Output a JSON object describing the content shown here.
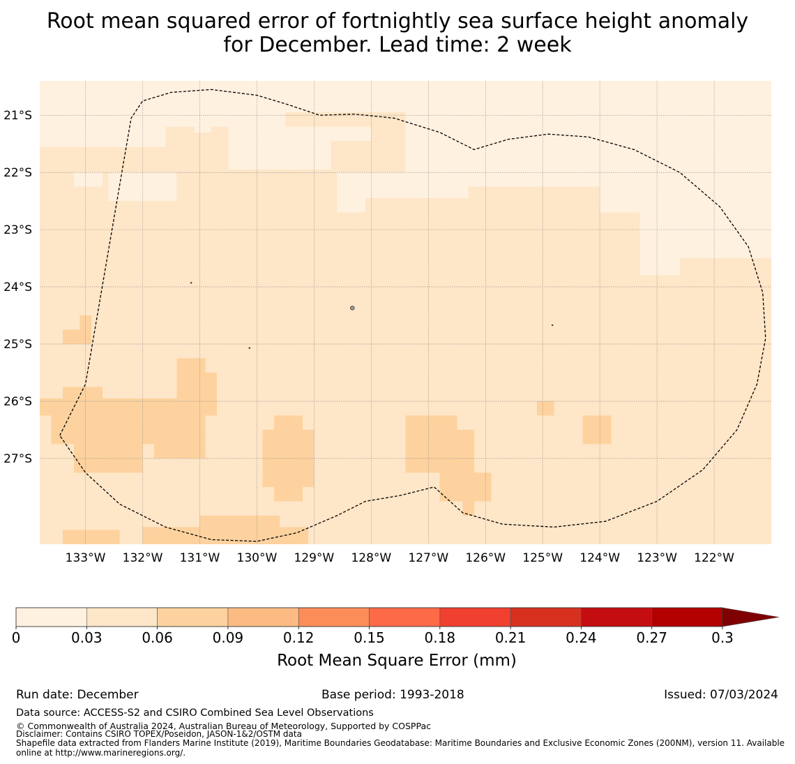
{
  "chart_data": {
    "type": "heatmap",
    "title_line1": "Root mean squared error of fortnightly sea surface height anomaly",
    "title_line2": "for December. Lead time: 2 week",
    "xlabel": "",
    "ylabel": "",
    "lon_range": [
      -133.8,
      -121.0
    ],
    "lat_range": [
      -20.4,
      -28.5
    ],
    "x_ticks": [
      -133,
      -132,
      -131,
      -130,
      -129,
      -128,
      -127,
      -126,
      -125,
      -124,
      -123,
      -122
    ],
    "x_tick_labels": [
      "133°W",
      "132°W",
      "131°W",
      "130°W",
      "129°W",
      "128°W",
      "127°W",
      "126°W",
      "125°W",
      "124°W",
      "123°W",
      "122°W"
    ],
    "y_ticks": [
      -21,
      -22,
      -23,
      -24,
      -25,
      -26,
      -27
    ],
    "y_tick_labels": [
      "21°S",
      "22°S",
      "23°S",
      "24°S",
      "25°S",
      "26°S",
      "27°S"
    ],
    "grid": true,
    "bin_edges": [
      0,
      0.03,
      0.06,
      0.09,
      0.12,
      0.15,
      0.18,
      0.21,
      0.24,
      0.27,
      0.3
    ],
    "bin_colors": [
      "#fff1e0",
      "#fee6c8",
      "#fdd29e",
      "#fdbb84",
      "#fc8d59",
      "#fc6a48",
      "#ef4030",
      "#d7301f",
      "#c40d10",
      "#b30000"
    ],
    "extend_color": "#7f0000",
    "colorbar_label": "Root Mean Square Error (mm)",
    "colorbar_tick_labels": [
      "0",
      "0.03",
      "0.06",
      "0.09",
      "0.12",
      "0.15",
      "0.18",
      "0.21",
      "0.24",
      "0.27",
      "0.3"
    ],
    "background_bin": 1,
    "regions": [
      {
        "bin": 0,
        "cells": [
          [
            -133.8,
            -20.4,
            -121.0,
            -20.95
          ],
          [
            -133.8,
            -20.95,
            -131.6,
            -21.55
          ],
          [
            -131.6,
            -20.95,
            -129.5,
            -21.2
          ],
          [
            -130.5,
            -21.2,
            -128.7,
            -21.95
          ],
          [
            -128.7,
            -21.2,
            -128.0,
            -21.45
          ],
          [
            -127.4,
            -20.95,
            -121.0,
            -22.25
          ],
          [
            -128.1,
            -22.0,
            -126.3,
            -22.45
          ],
          [
            -128.6,
            -22.0,
            -128.1,
            -22.7
          ],
          [
            -124.0,
            -21.95,
            -121.0,
            -22.7
          ],
          [
            -122.6,
            -22.5,
            -121.0,
            -23.5
          ],
          [
            -123.3,
            -22.7,
            -122.6,
            -23.8
          ],
          [
            -133.2,
            -22.0,
            -132.7,
            -22.25
          ],
          [
            -132.6,
            -22.0,
            -131.4,
            -22.5
          ],
          [
            -131.1,
            -21.0,
            -130.8,
            -21.3
          ]
        ]
      },
      {
        "bin": 2,
        "cells": [
          [
            -133.8,
            -25.95,
            -130.7,
            -26.25
          ],
          [
            -133.4,
            -25.75,
            -132.7,
            -25.95
          ],
          [
            -133.6,
            -26.25,
            -130.9,
            -26.75
          ],
          [
            -133.2,
            -26.75,
            -132.0,
            -27.25
          ],
          [
            -131.8,
            -26.75,
            -130.9,
            -27.0
          ],
          [
            -131.4,
            -25.25,
            -130.9,
            -25.95
          ],
          [
            -130.9,
            -25.5,
            -130.7,
            -25.95
          ],
          [
            -129.9,
            -26.5,
            -129.0,
            -27.5
          ],
          [
            -129.7,
            -26.25,
            -129.2,
            -26.5
          ],
          [
            -129.7,
            -27.5,
            -129.2,
            -27.75
          ],
          [
            -127.4,
            -26.25,
            -126.5,
            -27.25
          ],
          [
            -126.5,
            -26.5,
            -126.2,
            -27.25
          ],
          [
            -126.8,
            -27.25,
            -125.9,
            -27.75
          ],
          [
            -126.4,
            -27.75,
            -126.2,
            -28.0
          ],
          [
            -124.3,
            -26.25,
            -123.8,
            -26.75
          ],
          [
            -125.1,
            -26.0,
            -124.8,
            -26.25
          ],
          [
            -133.4,
            -24.75,
            -132.9,
            -25.0
          ],
          [
            -133.1,
            -24.5,
            -132.9,
            -24.75
          ],
          [
            -131.0,
            -28.0,
            -129.6,
            -28.5
          ],
          [
            -132.0,
            -28.2,
            -129.1,
            -28.5
          ],
          [
            -133.4,
            -28.25,
            -132.4,
            -28.5
          ]
        ]
      }
    ],
    "islands": [
      [
        -128.33,
        -24.37
      ],
      [
        -131.15,
        -23.93
      ],
      [
        -130.13,
        -25.07
      ],
      [
        -124.83,
        -24.67
      ]
    ],
    "eez_outline": [
      [
        -133.45,
        -26.6
      ],
      [
        -133.0,
        -25.7
      ],
      [
        -132.2,
        -21.05
      ],
      [
        -132.0,
        -20.75
      ],
      [
        -131.5,
        -20.6
      ],
      [
        -130.8,
        -20.55
      ],
      [
        -130.0,
        -20.65
      ],
      [
        -129.5,
        -20.8
      ],
      [
        -128.9,
        -21.0
      ],
      [
        -128.3,
        -20.98
      ],
      [
        -127.6,
        -21.05
      ],
      [
        -126.8,
        -21.3
      ],
      [
        -126.2,
        -21.6
      ],
      [
        -125.6,
        -21.42
      ],
      [
        -124.9,
        -21.33
      ],
      [
        -124.2,
        -21.38
      ],
      [
        -123.4,
        -21.6
      ],
      [
        -122.6,
        -22.0
      ],
      [
        -121.9,
        -22.6
      ],
      [
        -121.4,
        -23.3
      ],
      [
        -121.15,
        -24.1
      ],
      [
        -121.1,
        -24.9
      ],
      [
        -121.25,
        -25.7
      ],
      [
        -121.6,
        -26.5
      ],
      [
        -122.2,
        -27.2
      ],
      [
        -123.0,
        -27.75
      ],
      [
        -123.9,
        -28.1
      ],
      [
        -124.8,
        -28.2
      ],
      [
        -125.7,
        -28.15
      ],
      [
        -126.4,
        -27.95
      ],
      [
        -126.9,
        -27.5
      ],
      [
        -127.5,
        -27.65
      ],
      [
        -128.1,
        -27.75
      ],
      [
        -128.6,
        -28.0
      ],
      [
        -129.3,
        -28.3
      ],
      [
        -130.0,
        -28.45
      ],
      [
        -130.8,
        -28.42
      ],
      [
        -131.6,
        -28.2
      ],
      [
        -132.4,
        -27.8
      ],
      [
        -133.0,
        -27.25
      ],
      [
        -133.45,
        -26.6
      ]
    ]
  },
  "footer": {
    "run_date": "Run date: December",
    "base_period": "Base period: 1993-2018",
    "issued": "Issued: 07/03/2024",
    "data_source": "Data source: ACCESS-S2 and CSIRO Combined Sea Level Observations",
    "copyright": "© Commonwealth of Australia 2024, Australian Bureau of Meteorology, Supported by COSPPac",
    "disclaimer": "Disclaimer: Contains CSIRO TOPEX/Poseidon, JASON-1&2/OSTM data",
    "shapefile_line1": "Shapefile data extracted from Flanders Marine Institute (2019), Maritime Boundaries Geodatabase: Maritime Boundaries and Exclusive Economic Zones (200NM), version 11. Available",
    "shapefile_line2": "online at http://www.marineregions.org/."
  }
}
